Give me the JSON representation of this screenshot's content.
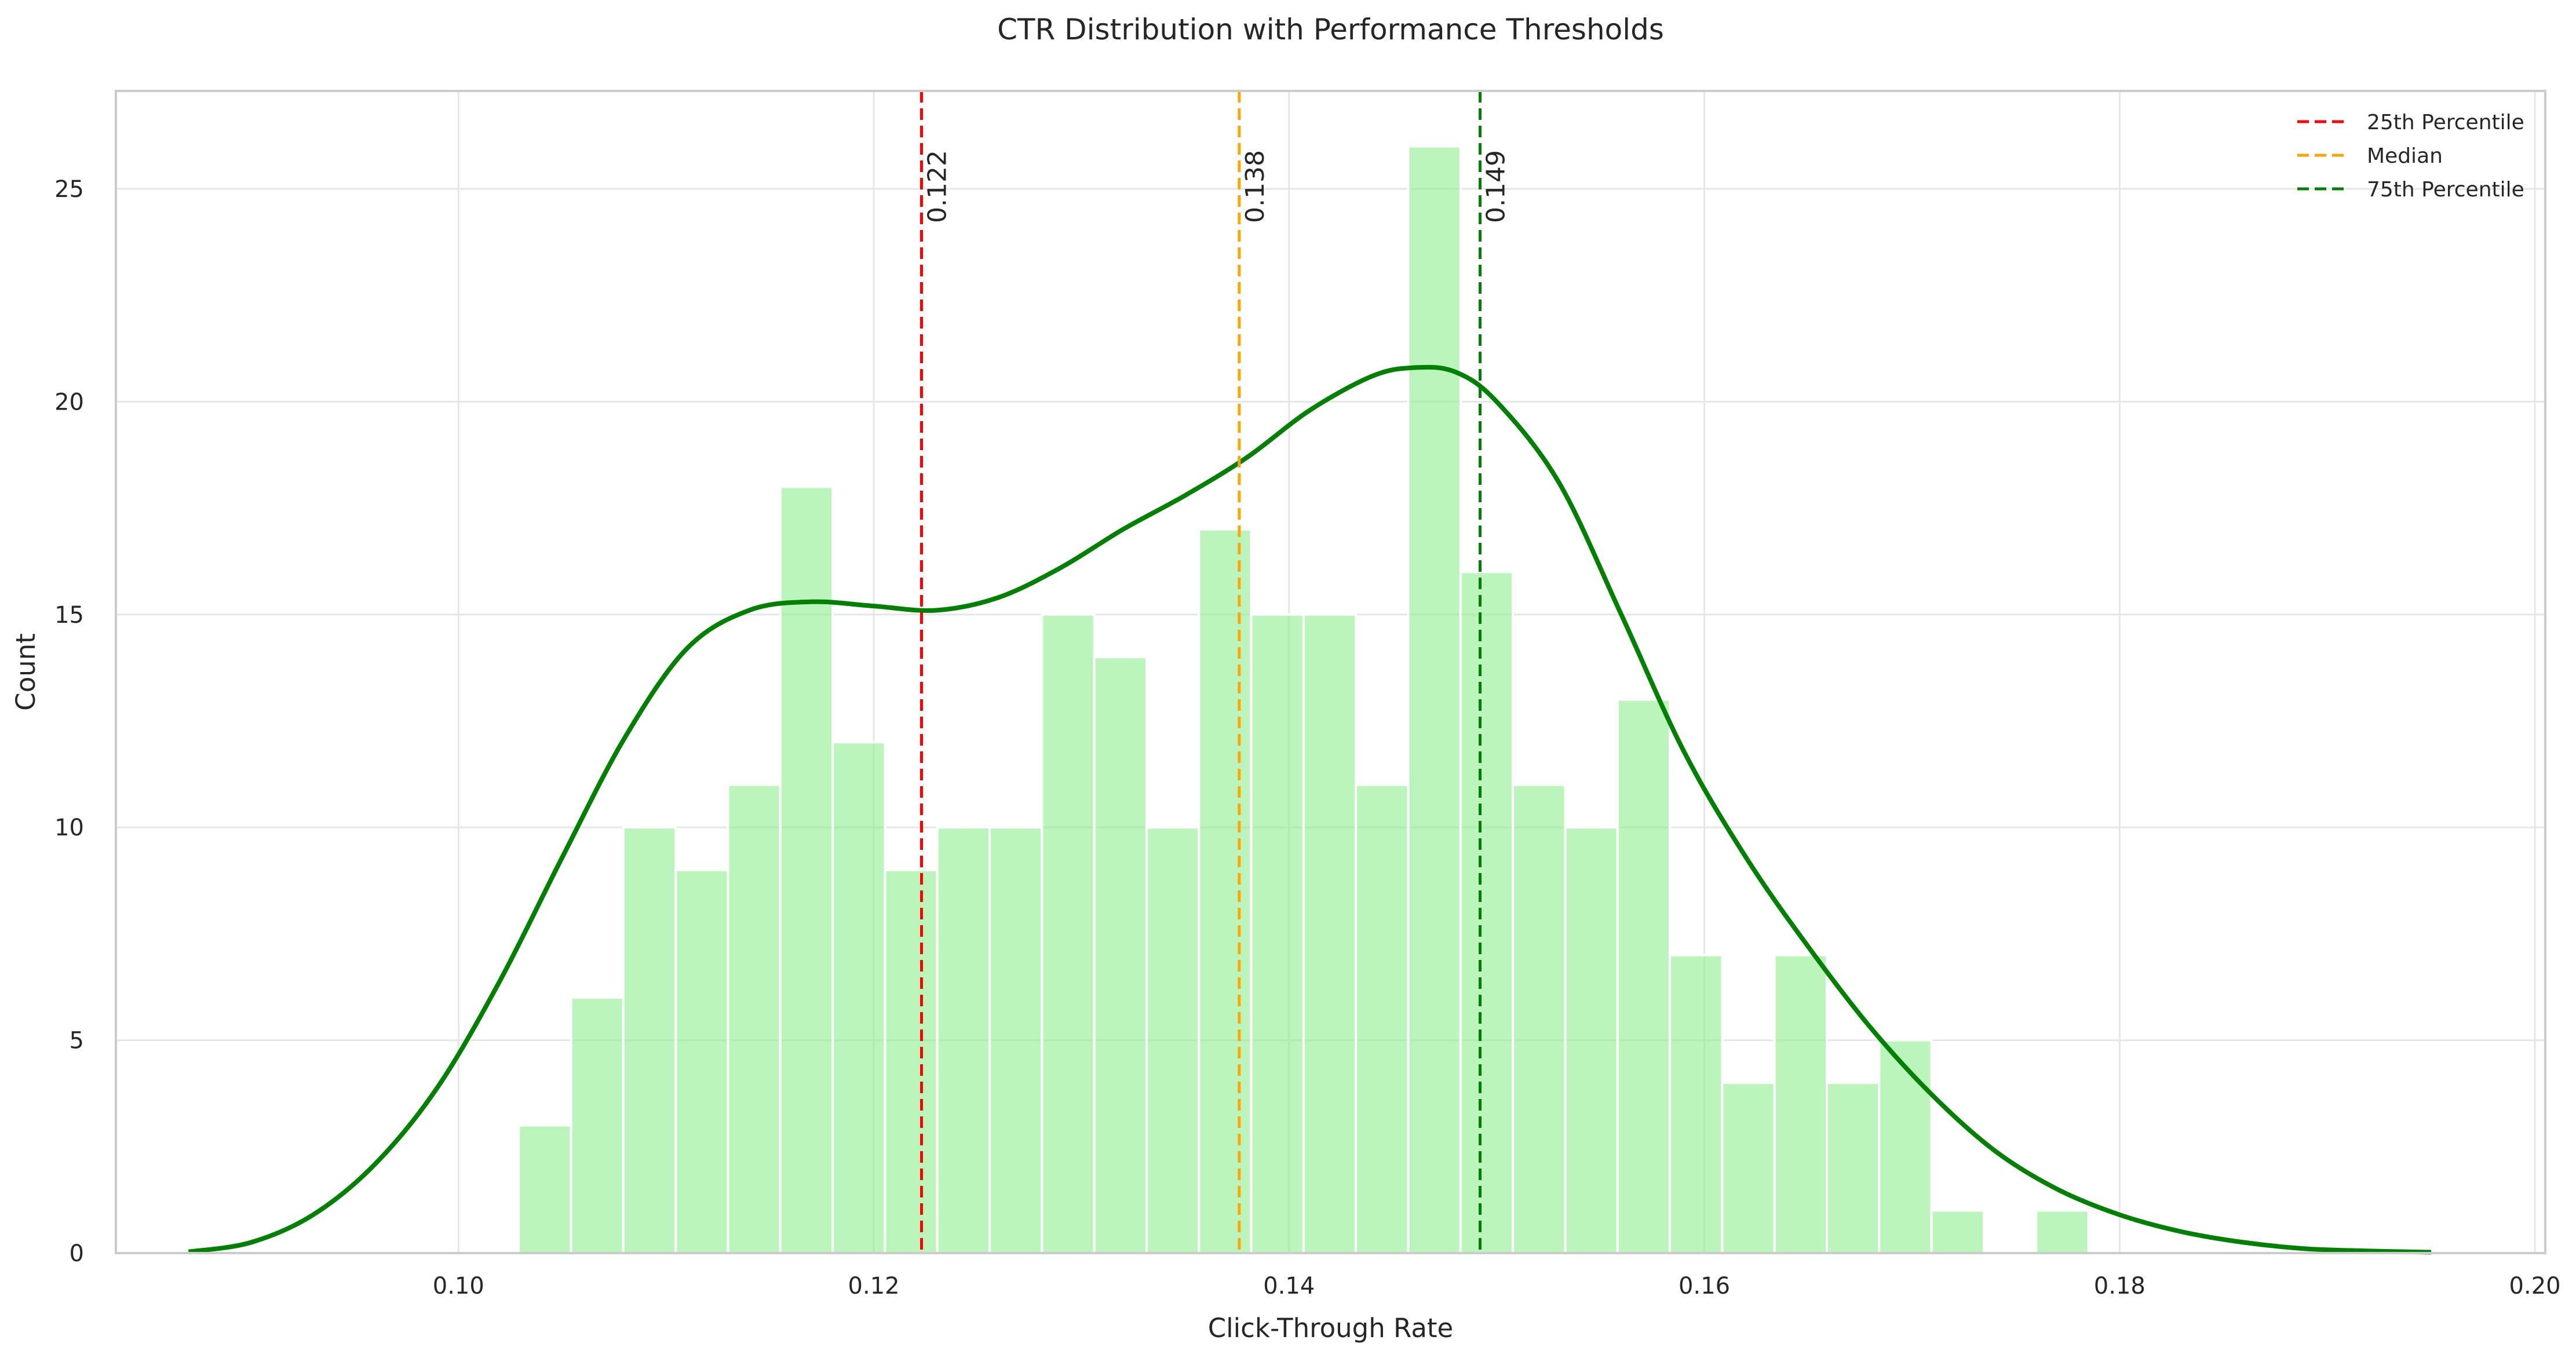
{
  "chart_data": {
    "type": "bar",
    "title": "CTR Distribution with Performance Thresholds",
    "xlabel": "Click-Through Rate",
    "ylabel": "Count",
    "xlim": [
      0.0835,
      0.2005
    ],
    "ylim": [
      0,
      27.3
    ],
    "xticks": [
      0.1,
      0.12,
      0.14,
      0.16,
      0.18,
      0.2
    ],
    "xtick_labels": [
      "0.10",
      "0.12",
      "0.14",
      "0.16",
      "0.18",
      "0.20"
    ],
    "yticks": [
      0,
      5,
      10,
      15,
      20,
      25
    ],
    "ytick_labels": [
      "0",
      "5",
      "10",
      "15",
      "20",
      "25"
    ],
    "grid": true,
    "legend_position": "top-right",
    "histogram": {
      "bin_start": 0.1029,
      "bin_width": 0.00252,
      "counts": [
        3,
        6,
        10,
        9,
        11,
        18,
        12,
        9,
        10,
        10,
        15,
        14,
        10,
        17,
        15,
        15,
        11,
        26,
        16,
        11,
        10,
        13,
        7,
        4,
        7,
        4,
        5,
        1,
        0,
        1
      ],
      "color": "#90ee90"
    },
    "kde": {
      "x": [
        0.087,
        0.09,
        0.093,
        0.096,
        0.099,
        0.102,
        0.105,
        0.108,
        0.111,
        0.114,
        0.117,
        0.12,
        0.123,
        0.126,
        0.129,
        0.132,
        0.135,
        0.138,
        0.141,
        0.144,
        0.146,
        0.148,
        0.15,
        0.153,
        0.156,
        0.159,
        0.162,
        0.165,
        0.168,
        0.171,
        0.174,
        0.177,
        0.18,
        0.183,
        0.186,
        0.189,
        0.192,
        0.195
      ],
      "y": [
        0.03,
        0.25,
        0.9,
        2.1,
        3.9,
        6.4,
        9.3,
        12.1,
        14.2,
        15.1,
        15.3,
        15.2,
        15.1,
        15.4,
        16.1,
        17.0,
        17.8,
        18.7,
        19.8,
        20.6,
        20.8,
        20.7,
        20.0,
        18.1,
        15.0,
        11.8,
        9.3,
        7.2,
        5.3,
        3.7,
        2.4,
        1.5,
        0.9,
        0.5,
        0.25,
        0.1,
        0.05,
        0.02
      ],
      "color": "#008000"
    },
    "thresholds": [
      {
        "name": "25th Percentile",
        "value": 0.1223,
        "label": "0.122",
        "color": "#ff0000"
      },
      {
        "name": "Median",
        "value": 0.1376,
        "label": "0.138",
        "color": "#ffa500"
      },
      {
        "name": "75th Percentile",
        "value": 0.1492,
        "label": "0.149",
        "color": "#008000"
      }
    ]
  }
}
